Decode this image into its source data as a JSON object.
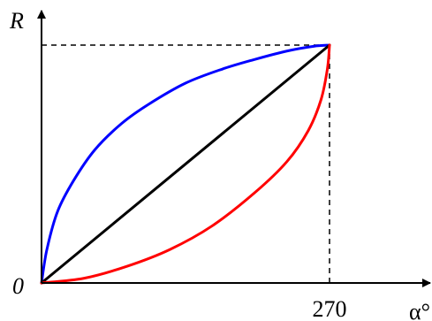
{
  "chart_data": {
    "type": "line",
    "ylabel": "R",
    "xlabel": "α°",
    "origin_label": "0",
    "x_tick_labels": [
      {
        "x": 270,
        "label": "270"
      }
    ],
    "xlim": [
      0,
      300
    ],
    "ylim": [
      0,
      1.1
    ],
    "grid": false,
    "reference_lines": [
      {
        "kind": "horizontal",
        "y": 1,
        "from_x": 0,
        "to_x": 270,
        "style": "dashed",
        "color": "#000000"
      },
      {
        "kind": "vertical",
        "x": 270,
        "from_y": 0,
        "to_y": 1,
        "style": "dashed",
        "color": "#000000"
      }
    ],
    "series": [
      {
        "color": "#0000ff",
        "x": [
          0,
          5,
          15,
          30,
          50,
          75,
          100,
          135,
          170,
          200,
          230,
          255,
          270
        ],
        "y": [
          0,
          0.14,
          0.3,
          0.43,
          0.56,
          0.67,
          0.75,
          0.84,
          0.9,
          0.94,
          0.975,
          0.995,
          1.0
        ]
      },
      {
        "color": "#000000",
        "x": [
          0,
          270
        ],
        "y": [
          0,
          1.0
        ]
      },
      {
        "color": "#ff0000",
        "x": [
          0,
          40,
          80,
          120,
          160,
          200,
          230,
          250,
          262,
          268,
          270
        ],
        "y": [
          0,
          0.02,
          0.07,
          0.14,
          0.24,
          0.38,
          0.51,
          0.64,
          0.77,
          0.9,
          1.0
        ]
      }
    ]
  }
}
